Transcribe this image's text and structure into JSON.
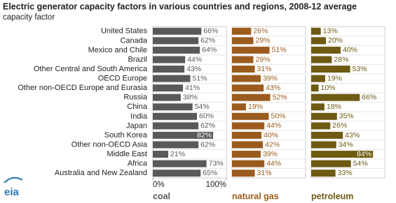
{
  "chart_data": {
    "type": "bar",
    "orientation": "horizontal",
    "layout": "small-multiples",
    "title": "Electric generator capacity factors in various countries and regions, 2008-12 average",
    "subtitle": "capacity factor",
    "categories": [
      "United States",
      "Canada",
      "Mexico and Chile",
      "Brazil",
      "Other Central and South America",
      "OECD Europe",
      "Other non-OECD Europe and Eurasia",
      "Russia",
      "China",
      "India",
      "Japan",
      "South Korea",
      "Other non-OECD Asia",
      "Middle East",
      "Africa",
      "Australia and New Zealand"
    ],
    "xlim": [
      0,
      100
    ],
    "xticks": [
      {
        "value": 0,
        "label": "0%"
      },
      {
        "value": 100,
        "label": "100%"
      }
    ],
    "series": [
      {
        "name": "coal",
        "color": "#58595b",
        "values": [
          66,
          62,
          64,
          44,
          43,
          51,
          41,
          38,
          54,
          60,
          62,
          82,
          62,
          21,
          73,
          65
        ],
        "value_labels": [
          "66%",
          "62%",
          "64%",
          "44%",
          "43%",
          "51%",
          "41%",
          "38%",
          "54%",
          "60%",
          "62%",
          "82%",
          "62%",
          "21%",
          "73%",
          "65%"
        ]
      },
      {
        "name": "natural gas",
        "color": "#9b5b1e",
        "values": [
          26,
          29,
          51,
          29,
          31,
          39,
          43,
          52,
          19,
          50,
          44,
          40,
          42,
          39,
          44,
          31
        ],
        "value_labels": [
          "26%",
          "29%",
          "51%",
          "29%",
          "31%",
          "39%",
          "43%",
          "52%",
          "19%",
          "50%",
          "44%",
          "40%",
          "42%",
          "39%",
          "44%",
          "31%"
        ]
      },
      {
        "name": "petroleum",
        "color": "#6e5a12",
        "values": [
          13,
          20,
          40,
          28,
          53,
          19,
          10,
          66,
          18,
          35,
          26,
          43,
          34,
          84,
          54,
          33
        ],
        "value_labels": [
          "13%",
          "20%",
          "40%",
          "28%",
          "53%",
          "19%",
          "10%",
          "66%",
          "18%",
          "35%",
          "26%",
          "43%",
          "34%",
          "84%",
          "54%",
          "33%"
        ]
      }
    ],
    "logo": "eia"
  }
}
